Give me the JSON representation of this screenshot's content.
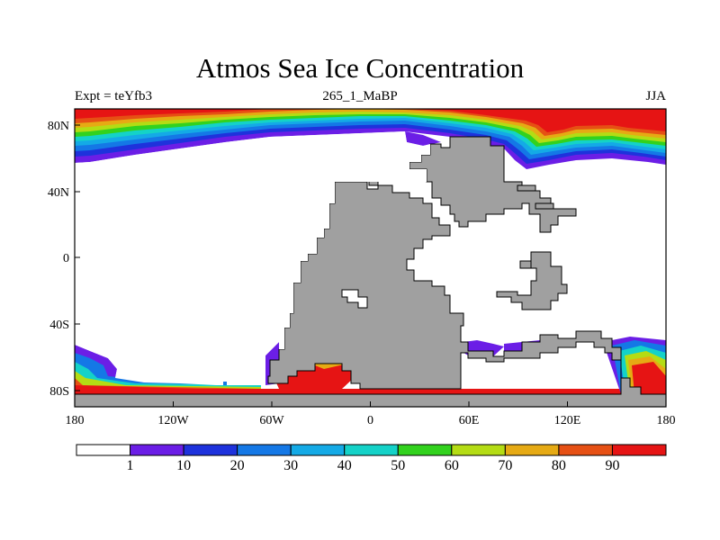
{
  "title": "Atmos Sea Ice Concentration",
  "left_label": "Expt = teYfb3",
  "center_label": "265_1_MaBP",
  "right_label": "JJA",
  "map": {
    "lon_ticks": [
      "180",
      "120W",
      "60W",
      "0",
      "60E",
      "120E",
      "180"
    ],
    "lat_ticks": [
      "80N",
      "40N",
      "0",
      "40S",
      "80S"
    ],
    "land_color": "#a0a0a0"
  },
  "colorbar": {
    "colors": [
      "#ffffff",
      "#6b1ee6",
      "#1e32dc",
      "#1478e6",
      "#14aae6",
      "#14d2c8",
      "#32d21e",
      "#b4dc14",
      "#e6aa14",
      "#e65014",
      "#e61414"
    ],
    "labels": [
      "1",
      "10",
      "20",
      "30",
      "40",
      "50",
      "60",
      "70",
      "80",
      "90"
    ]
  }
}
